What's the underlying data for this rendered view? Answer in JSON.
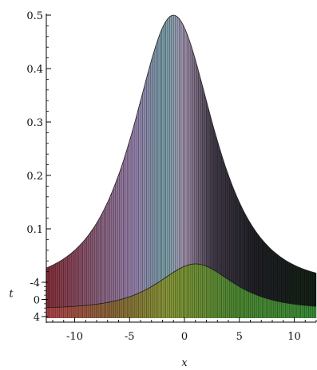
{
  "chart_data": {
    "type": "surface-3d",
    "title": "",
    "xlabel": "x",
    "ylabel": "t",
    "zlabel": "",
    "xlim": [
      -12,
      12
    ],
    "ylim": [
      -4,
      4
    ],
    "zlim": [
      0,
      0.5
    ],
    "x_ticks": [
      -10,
      -5,
      0,
      5,
      10
    ],
    "y_ticks": [
      -4,
      0,
      4
    ],
    "z_ticks": [
      0.1,
      0.2,
      0.3,
      0.4,
      0.5
    ],
    "x_tick_labels": [
      "-10",
      "-5",
      "0",
      "5",
      "10"
    ],
    "y_tick_labels": [
      "-4",
      "0",
      "4"
    ],
    "z_tick_labels": [
      "0.1",
      "0.2",
      "0.3",
      "0.4",
      "0.5"
    ],
    "peak_value": 0.5,
    "back_ridge_peak_x": -1,
    "front_ridge_peak_x": 1,
    "grid": false,
    "legend": "none"
  }
}
